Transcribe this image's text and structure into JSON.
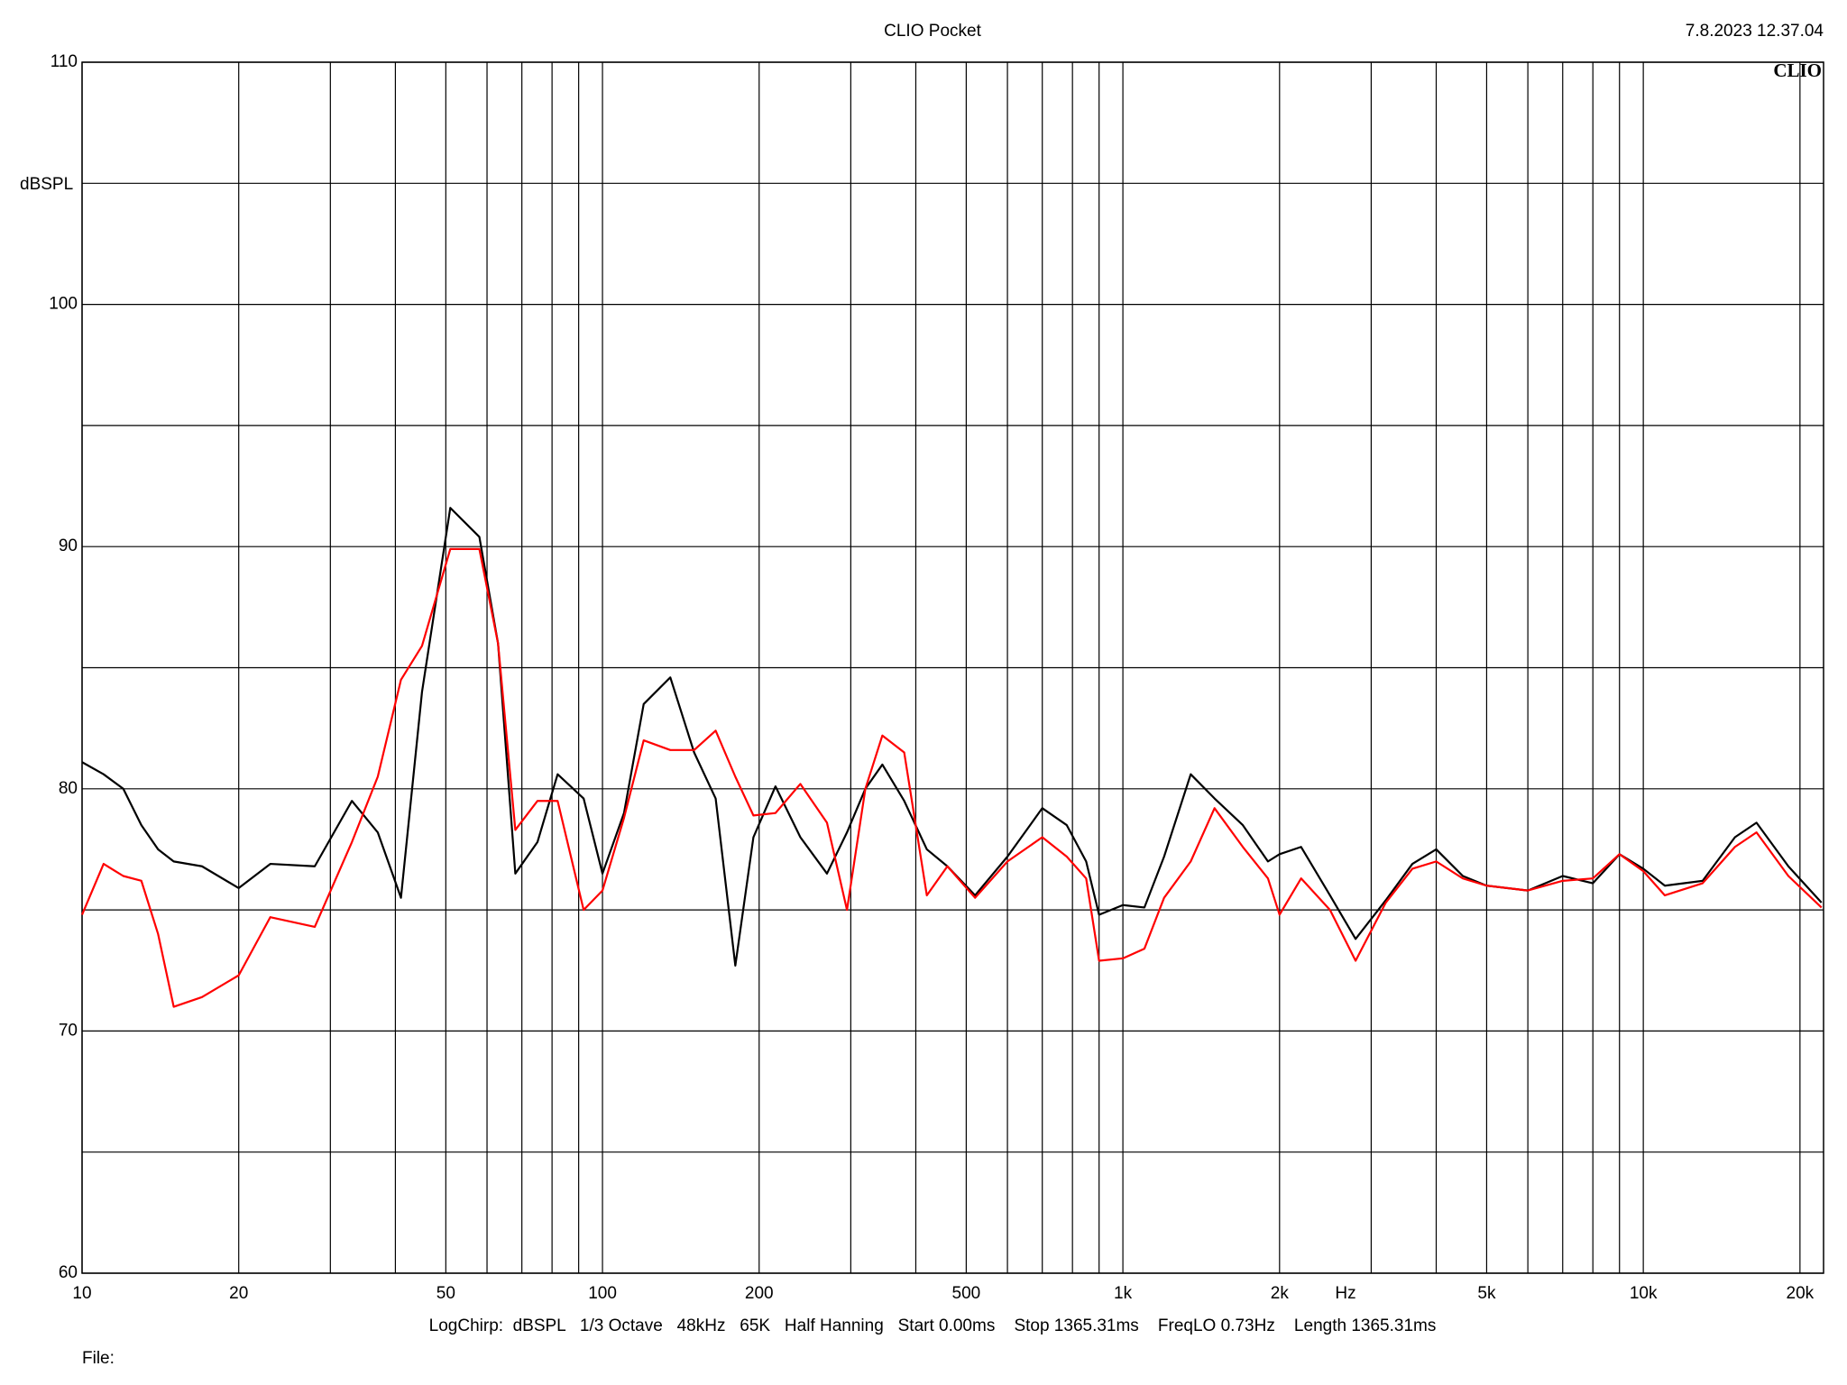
{
  "chart_data": {
    "type": "line",
    "title": "CLIO Pocket",
    "timestamp": "7.8.2023 12.37.04",
    "logo": "CLIO",
    "y_label": "dBSPL",
    "x_label": "Hz",
    "footer": "LogChirp:  dBSPL   1/3 Octave   48kHz   65K   Half Hanning   Start 0.00ms    Stop 1365.31ms    FreqLO 0.73Hz    Length 1365.31ms",
    "file_label": "File:",
    "x_scale": "log",
    "grid": true,
    "xlim": [
      10,
      22200
    ],
    "ylim": [
      60,
      110
    ],
    "yticks": [
      60,
      70,
      80,
      90,
      100,
      110
    ],
    "y_minor_grid": [
      65,
      75,
      85,
      95,
      105
    ],
    "xticks": [
      10,
      20,
      50,
      100,
      200,
      500,
      {
        "value": 1000,
        "label": "1k"
      },
      {
        "value": 2000,
        "label": "2k"
      },
      {
        "value": 5000,
        "label": "5k"
      },
      {
        "value": 10000,
        "label": "10k"
      },
      {
        "value": 20000,
        "label": "20k"
      }
    ],
    "x_minor_grid": [
      30,
      40,
      60,
      70,
      80,
      90,
      300,
      400,
      600,
      700,
      800,
      900,
      3000,
      4000,
      6000,
      7000,
      8000,
      9000
    ],
    "x": [
      10,
      11,
      12,
      13,
      14,
      15,
      17,
      20,
      23,
      28,
      33,
      37,
      41,
      45,
      51,
      58,
      63,
      68,
      75,
      82,
      92,
      100,
      110,
      120,
      135,
      150,
      165,
      180,
      195,
      215,
      240,
      270,
      295,
      320,
      345,
      380,
      420,
      460,
      520,
      600,
      700,
      780,
      850,
      900,
      1000,
      1100,
      1200,
      1350,
      1500,
      1700,
      1900,
      2000,
      2200,
      2500,
      2800,
      3200,
      3600,
      4000,
      4500,
      5000,
      6000,
      7000,
      8000,
      9000,
      10000,
      11000,
      13000,
      15000,
      16500,
      19000,
      22000
    ],
    "series": [
      {
        "color": "#000000",
        "values": [
          81.1,
          80.6,
          80.0,
          78.5,
          77.5,
          77.0,
          76.8,
          75.9,
          76.9,
          76.8,
          79.5,
          78.2,
          75.5,
          84.0,
          91.6,
          90.4,
          86.0,
          76.5,
          77.8,
          80.6,
          79.6,
          76.5,
          79.0,
          83.5,
          84.6,
          81.5,
          79.6,
          72.7,
          78.0,
          80.1,
          78.0,
          76.5,
          78.2,
          80.0,
          81.0,
          79.5,
          77.5,
          76.8,
          75.6,
          77.2,
          79.2,
          78.5,
          77.0,
          74.8,
          75.2,
          75.1,
          77.2,
          80.6,
          79.6,
          78.5,
          77.0,
          77.3,
          77.6,
          75.6,
          73.8,
          75.4,
          76.9,
          77.5,
          76.4,
          76.0,
          75.8,
          76.4,
          76.1,
          77.3,
          76.7,
          76.0,
          76.2,
          78.0,
          78.6,
          76.8,
          75.3
        ]
      },
      {
        "color": "#ff0000",
        "values": [
          74.8,
          76.9,
          76.4,
          76.2,
          74.0,
          71.0,
          71.4,
          72.3,
          74.7,
          74.3,
          77.8,
          80.5,
          84.5,
          85.9,
          89.9,
          89.9,
          86.0,
          78.3,
          79.5,
          79.5,
          75.0,
          75.8,
          78.8,
          82.0,
          81.6,
          81.6,
          82.4,
          80.5,
          78.9,
          79.0,
          80.2,
          78.6,
          75.0,
          80.0,
          82.2,
          81.5,
          75.6,
          76.8,
          75.5,
          77.0,
          78.0,
          77.2,
          76.3,
          72.9,
          73.0,
          73.4,
          75.5,
          77.0,
          79.2,
          77.6,
          76.3,
          74.8,
          76.3,
          75.0,
          72.9,
          75.3,
          76.7,
          77.0,
          76.3,
          76.0,
          75.8,
          76.2,
          76.3,
          77.3,
          76.6,
          75.6,
          76.1,
          77.6,
          78.2,
          76.4,
          75.1
        ]
      }
    ]
  }
}
